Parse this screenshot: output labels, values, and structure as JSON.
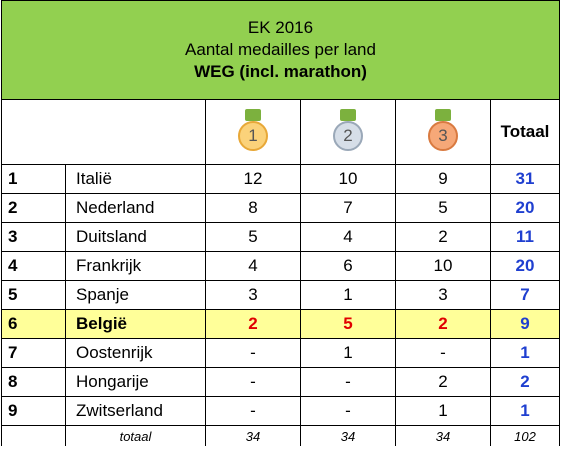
{
  "header": {
    "title": "EK 2016",
    "subtitle": "Aantal medailles per land",
    "category": "WEG (incl. marathon)"
  },
  "table": {
    "columns": [
      "1",
      "2",
      "3",
      "Totaal"
    ],
    "rows": [
      [
        1,
        "Italië",
        12,
        10,
        9,
        31
      ],
      [
        2,
        "Nederland",
        8,
        7,
        5,
        20
      ],
      [
        3,
        "Duitsland",
        5,
        4,
        2,
        11
      ],
      [
        4,
        "Frankrijk",
        4,
        6,
        10,
        20
      ],
      [
        5,
        "Spanje",
        3,
        1,
        3,
        7
      ],
      [
        6,
        "België",
        2,
        5,
        2,
        9
      ],
      [
        7,
        "Oostenrijk",
        "-",
        1,
        "-",
        1
      ],
      [
        8,
        "Hongarije",
        "-",
        "-",
        2,
        2
      ],
      [
        9,
        "Zwitserland",
        "-",
        "-",
        1,
        1
      ]
    ],
    "highlight_row": 5,
    "footer": [
      "totaal",
      34,
      34,
      34,
      102
    ]
  }
}
